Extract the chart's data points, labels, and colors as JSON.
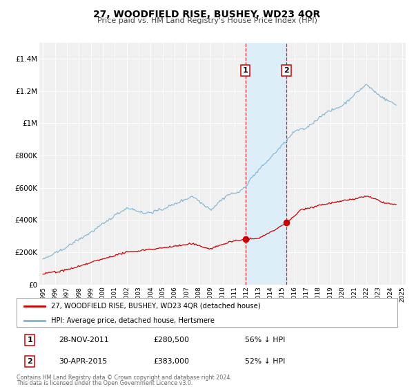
{
  "title": "27, WOODFIELD RISE, BUSHEY, WD23 4QR",
  "subtitle": "Price paid vs. HM Land Registry's House Price Index (HPI)",
  "hpi_color": "#7ab3d4",
  "price_color": "#cc0000",
  "background_color": "#ffffff",
  "plot_bg_color": "#f0f0f0",
  "grid_color": "#ffffff",
  "ylim": [
    0,
    1500000
  ],
  "yticks": [
    0,
    200000,
    400000,
    600000,
    800000,
    1000000,
    1200000,
    1400000
  ],
  "ytick_labels": [
    "£0",
    "£200K",
    "£400K",
    "£600K",
    "£800K",
    "£1M",
    "£1.2M",
    "£1.4M"
  ],
  "xlim_start": 1994.7,
  "xlim_end": 2025.3,
  "transaction1_x": 2011.91,
  "transaction1_y": 280500,
  "transaction2_x": 2015.33,
  "transaction2_y": 383000,
  "shade_color": "#ddeef9",
  "vline_color": "#cc0000",
  "legend_line1": "27, WOODFIELD RISE, BUSHEY, WD23 4QR (detached house)",
  "legend_line2": "HPI: Average price, detached house, Hertsmere",
  "transaction1_date": "28-NOV-2011",
  "transaction1_price": "£280,500",
  "transaction1_hpi": "56% ↓ HPI",
  "transaction2_date": "30-APR-2015",
  "transaction2_price": "£383,000",
  "transaction2_hpi": "52% ↓ HPI",
  "footer1": "Contains HM Land Registry data © Crown copyright and database right 2024.",
  "footer2": "This data is licensed under the Open Government Licence v3.0."
}
